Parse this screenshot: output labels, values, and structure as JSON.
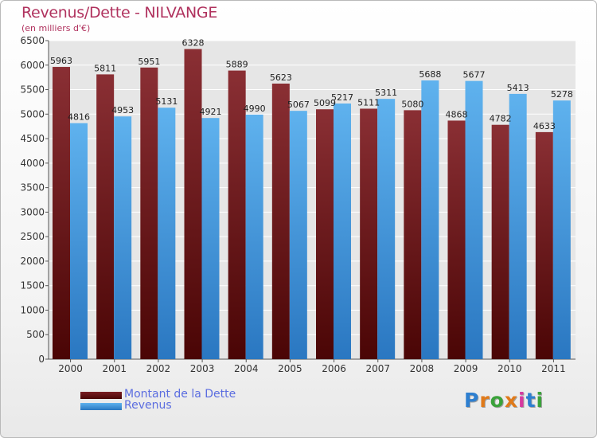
{
  "title": "Revenus/Dette - NILVANGE",
  "subtitle": "(en milliers d'€)",
  "logo": "Proxiti",
  "colors": {
    "dette_top": "#8a2f34",
    "dette_bottom": "#4a0505",
    "revenus_top": "#5fb2ee",
    "revenus_bottom": "#2a77c1",
    "title": "#b0325e",
    "legend_text": "#5b6de0"
  },
  "chart_data": {
    "type": "bar",
    "categories": [
      "2000",
      "2001",
      "2002",
      "2003",
      "2004",
      "2005",
      "2006",
      "2007",
      "2008",
      "2009",
      "2010",
      "2011"
    ],
    "series": [
      {
        "name": "Montant de la Dette",
        "values": [
          5963,
          5811,
          5951,
          6328,
          5889,
          5623,
          5099,
          5111,
          5080,
          4868,
          4782,
          4633
        ]
      },
      {
        "name": "Revenus",
        "values": [
          4816,
          4953,
          5131,
          4921,
          4990,
          5067,
          5217,
          5311,
          5688,
          5677,
          5413,
          5278
        ]
      }
    ],
    "ylim": [
      0,
      6500
    ],
    "yticks": [
      0,
      500,
      1000,
      1500,
      2000,
      2500,
      3000,
      3500,
      4000,
      4500,
      5000,
      5500,
      6000,
      6500
    ],
    "grid": true,
    "legend_position": "bottom-left"
  }
}
